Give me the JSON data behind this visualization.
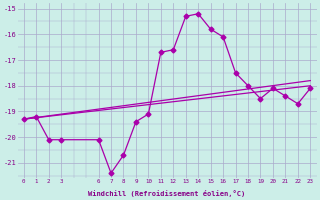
{
  "xlabel": "Windchill (Refroidissement éolien,°C)",
  "background_color": "#cceee8",
  "grid_color": "#aaaacc",
  "line_color": "#aa00aa",
  "hours": [
    0,
    1,
    2,
    3,
    6,
    7,
    8,
    9,
    10,
    11,
    12,
    13,
    14,
    15,
    16,
    17,
    18,
    19,
    20,
    21,
    22,
    23
  ],
  "windchill": [
    -19.3,
    -19.2,
    -20.1,
    -20.1,
    -20.1,
    -21.4,
    -20.7,
    -19.4,
    -19.1,
    -16.7,
    -16.6,
    -15.3,
    -15.2,
    -15.8,
    -16.1,
    -17.5,
    -18.0,
    -18.5,
    -18.1,
    -18.4,
    -18.7,
    -18.1
  ],
  "line1_x": [
    0,
    23
  ],
  "line1_y": [
    -19.3,
    -17.8
  ],
  "line2_x": [
    0,
    23
  ],
  "line2_y": [
    -19.3,
    -18.0
  ],
  "ylim": [
    -21.6,
    -14.8
  ],
  "yticks": [
    -21,
    -20,
    -19,
    -18,
    -17,
    -16,
    -15
  ],
  "xticks": [
    0,
    1,
    2,
    3,
    6,
    7,
    8,
    9,
    10,
    11,
    12,
    13,
    14,
    15,
    16,
    17,
    18,
    19,
    20,
    21,
    22,
    23
  ],
  "xlim": [
    -0.5,
    23.5
  ]
}
